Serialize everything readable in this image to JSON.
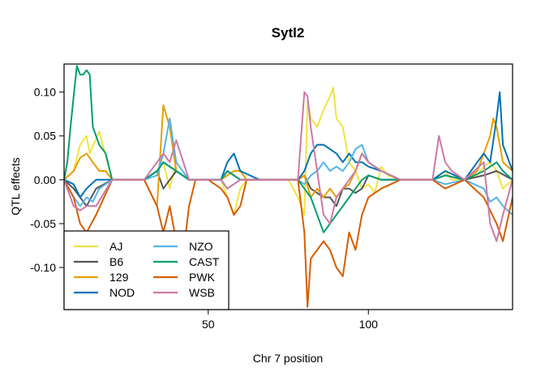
{
  "chart_data": {
    "type": "line",
    "title": "Sytl2",
    "xlabel": "Chr 7 position",
    "ylabel": "QTL effects",
    "xlim": [
      5,
      145
    ],
    "ylim": [
      -0.148,
      0.132
    ],
    "x_ticks": [
      50,
      100
    ],
    "x_tick_labels": [
      "50",
      "100"
    ],
    "y_ticks": [
      0.1,
      0.05,
      0.0,
      -0.05,
      -0.1
    ],
    "y_tick_labels": [
      "0.10",
      "0.05",
      "0.00",
      "-0.05",
      "-0.10"
    ],
    "grid": false,
    "legend": {
      "position": "bottom-left",
      "columns": 2
    },
    "series": [
      {
        "name": "AJ",
        "color": "#F0E442",
        "x": [
          5,
          8,
          10,
          12,
          13,
          16,
          20,
          30,
          34,
          36,
          38,
          40,
          44,
          46,
          50,
          52,
          54,
          56,
          58,
          60,
          62,
          66,
          70,
          75,
          78,
          80,
          81,
          82,
          84,
          86,
          88,
          89,
          90,
          92,
          94,
          96,
          98,
          100,
          102,
          104,
          106,
          110,
          120,
          122,
          124,
          126,
          130,
          134,
          136,
          138,
          140,
          142,
          145
        ],
        "y": [
          0,
          0.01,
          0.04,
          0.05,
          0.03,
          0.055,
          0,
          0,
          0.01,
          0.02,
          -0.01,
          0.02,
          0,
          0,
          0,
          0,
          0,
          -0.02,
          -0.04,
          -0.01,
          0,
          0,
          0,
          0,
          -0.02,
          -0.04,
          0.09,
          0.07,
          0.06,
          0.08,
          0.095,
          0.105,
          0.07,
          0.06,
          0.02,
          0.01,
          -0.01,
          -0.005,
          -0.015,
          0.015,
          0.005,
          0,
          0,
          0.005,
          0.01,
          0,
          0,
          0.005,
          0.015,
          0.02,
          0.01,
          -0.01,
          0
        ]
      },
      {
        "name": "B6",
        "color": "#555555",
        "x": [
          5,
          8,
          10,
          12,
          15,
          20,
          30,
          34,
          36,
          40,
          44,
          50,
          54,
          56,
          60,
          66,
          70,
          78,
          80,
          82,
          84,
          86,
          88,
          90,
          92,
          94,
          96,
          98,
          100,
          104,
          110,
          120,
          124,
          130,
          136,
          140,
          145
        ],
        "y": [
          0,
          -0.01,
          -0.02,
          -0.03,
          -0.01,
          0,
          0,
          0.01,
          -0.01,
          0.01,
          0,
          0,
          0,
          0.01,
          0,
          0,
          0,
          0,
          0.005,
          -0.01,
          -0.015,
          -0.02,
          -0.02,
          -0.03,
          -0.01,
          -0.01,
          -0.015,
          -0.01,
          0.005,
          0,
          0,
          0,
          0.005,
          0,
          0.005,
          0.01,
          0
        ]
      },
      {
        "name": "129",
        "color": "#E69F00",
        "x": [
          5,
          8,
          10,
          12,
          14,
          16,
          18,
          20,
          30,
          34,
          36,
          38,
          40,
          44,
          46,
          50,
          54,
          56,
          58,
          60,
          62,
          66,
          70,
          78,
          80,
          82,
          84,
          86,
          88,
          90,
          92,
          94,
          96,
          98,
          100,
          104,
          110,
          120,
          124,
          130,
          134,
          136,
          138,
          139,
          140,
          142,
          145
        ],
        "y": [
          0,
          0.01,
          0.025,
          0.03,
          0.02,
          0.01,
          0.01,
          0,
          0,
          -0.03,
          0.085,
          0.06,
          0.01,
          0,
          0,
          0,
          0,
          0.005,
          0.01,
          0.01,
          0,
          0,
          0,
          0,
          0.005,
          -0.02,
          -0.01,
          -0.02,
          -0.01,
          -0.02,
          -0.01,
          -0.005,
          0.01,
          0.03,
          0.02,
          0.01,
          0,
          0,
          0.005,
          0,
          0.01,
          0.03,
          0.05,
          0.07,
          0.06,
          0.02,
          0.01
        ]
      },
      {
        "name": "NOD",
        "color": "#0072B2",
        "x": [
          5,
          8,
          10,
          12,
          15,
          20,
          30,
          34,
          36,
          40,
          44,
          50,
          54,
          56,
          58,
          60,
          66,
          70,
          78,
          80,
          82,
          84,
          86,
          88,
          90,
          92,
          94,
          96,
          98,
          100,
          104,
          110,
          120,
          124,
          130,
          134,
          136,
          138,
          140,
          141,
          142,
          145
        ],
        "y": [
          0,
          -0.005,
          -0.02,
          -0.01,
          0,
          0,
          0,
          0.01,
          0.02,
          0.01,
          0,
          0,
          0,
          0.02,
          0.03,
          0.01,
          0,
          0,
          0,
          0.01,
          0.03,
          0.04,
          0.04,
          0.035,
          0.03,
          0.02,
          0.03,
          0.02,
          0.02,
          0.015,
          0.01,
          0,
          0,
          0.01,
          0,
          0.02,
          0.03,
          0.02,
          0.07,
          0.1,
          0.04,
          0.01
        ]
      },
      {
        "name": "NZO",
        "color": "#56B4E9",
        "x": [
          5,
          8,
          10,
          12,
          14,
          16,
          20,
          30,
          34,
          36,
          38,
          40,
          44,
          50,
          54,
          56,
          60,
          66,
          70,
          78,
          80,
          82,
          84,
          86,
          88,
          90,
          92,
          94,
          96,
          98,
          100,
          104,
          110,
          120,
          124,
          130,
          136,
          138,
          140,
          142,
          145
        ],
        "y": [
          0,
          -0.02,
          -0.03,
          -0.02,
          -0.025,
          -0.01,
          0,
          0,
          0.005,
          0.03,
          0.07,
          0.02,
          0,
          0,
          0,
          -0.01,
          0,
          0,
          0,
          0,
          -0.005,
          0.005,
          0.01,
          0.02,
          0.01,
          0.015,
          0.01,
          0.02,
          0.035,
          0.04,
          0.02,
          0.01,
          0,
          0,
          -0.005,
          0,
          -0.01,
          -0.025,
          -0.02,
          -0.03,
          -0.04
        ]
      },
      {
        "name": "CAST",
        "color": "#009E73",
        "x": [
          5,
          6,
          7,
          8,
          9,
          10,
          11,
          12,
          13,
          14,
          16,
          18,
          20,
          30,
          34,
          36,
          40,
          44,
          50,
          54,
          56,
          60,
          66,
          70,
          78,
          80,
          82,
          84,
          86,
          88,
          90,
          92,
          94,
          96,
          98,
          100,
          104,
          110,
          120,
          124,
          130,
          136,
          140,
          142,
          145
        ],
        "y": [
          0,
          0.02,
          0.06,
          0.095,
          0.13,
          0.12,
          0.12,
          0.125,
          0.12,
          0.06,
          0.04,
          0.03,
          0,
          0,
          0.01,
          0.02,
          0.01,
          0,
          0,
          0,
          0.01,
          0,
          0,
          0,
          0,
          -0.01,
          -0.02,
          -0.04,
          -0.06,
          -0.05,
          -0.04,
          -0.03,
          -0.02,
          -0.01,
          0,
          0.005,
          0,
          0,
          0,
          0.005,
          0,
          0.01,
          0.02,
          0.01,
          0
        ]
      },
      {
        "name": "PWK",
        "color": "#D55E00",
        "x": [
          5,
          8,
          10,
          12,
          15,
          20,
          30,
          34,
          36,
          38,
          40,
          42,
          44,
          46,
          50,
          54,
          56,
          58,
          60,
          62,
          66,
          70,
          78,
          80,
          81,
          82,
          84,
          86,
          88,
          90,
          92,
          94,
          96,
          98,
          100,
          104,
          110,
          120,
          124,
          130,
          136,
          140,
          142,
          145
        ],
        "y": [
          0,
          -0.02,
          -0.05,
          -0.06,
          -0.04,
          0,
          0,
          -0.03,
          -0.06,
          -0.03,
          -0.07,
          -0.09,
          -0.03,
          0,
          0,
          -0.01,
          -0.02,
          -0.04,
          -0.03,
          0,
          0,
          0,
          0,
          -0.06,
          -0.145,
          -0.09,
          -0.08,
          -0.07,
          -0.08,
          -0.1,
          -0.11,
          -0.06,
          -0.08,
          -0.04,
          -0.02,
          -0.01,
          0,
          0,
          -0.01,
          0,
          -0.02,
          -0.05,
          -0.07,
          -0.02
        ]
      },
      {
        "name": "WSB",
        "color": "#CC79A7",
        "x": [
          5,
          8,
          10,
          12,
          15,
          20,
          30,
          34,
          36,
          38,
          40,
          44,
          50,
          54,
          56,
          60,
          66,
          70,
          78,
          80,
          81,
          82,
          84,
          86,
          88,
          90,
          92,
          94,
          96,
          98,
          100,
          104,
          110,
          120,
          122,
          124,
          126,
          130,
          136,
          138,
          140,
          142,
          145
        ],
        "y": [
          0,
          -0.03,
          -0.035,
          -0.03,
          -0.03,
          0,
          0,
          0.02,
          0.03,
          0.02,
          0.045,
          0,
          0,
          0,
          -0.01,
          0,
          0,
          0,
          0,
          0.1,
          0.095,
          0.06,
          0.01,
          -0.04,
          -0.05,
          -0.02,
          -0.01,
          0,
          0.01,
          0.03,
          0.02,
          0.01,
          0,
          0,
          0.05,
          0.02,
          0.01,
          0,
          0.02,
          -0.05,
          -0.07,
          -0.04,
          0
        ]
      }
    ]
  }
}
